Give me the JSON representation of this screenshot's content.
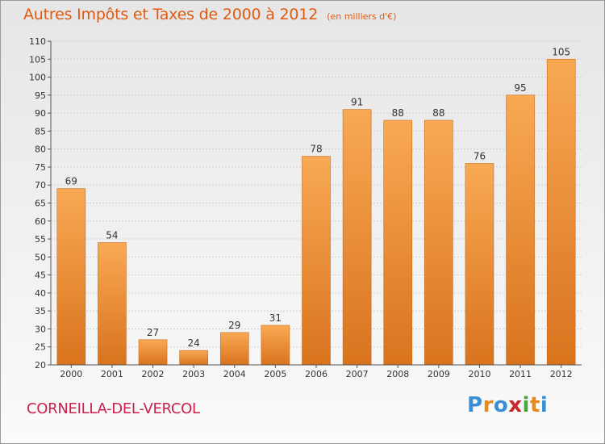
{
  "title": "Autres Impôts et Taxes de 2000 à 2012",
  "subtitle": "(en milliers d'€)",
  "place": "CORNEILLA-DEL-VERCOL",
  "logo": {
    "text": "Proxiti",
    "colors": [
      "#3a8fd6",
      "#e98a1f",
      "#3a8fd6",
      "#c9252c",
      "#4aa83a",
      "#e98a1f",
      "#3a8fd6"
    ]
  },
  "colors": {
    "title": "#e05a12",
    "place": "#cc1f4a",
    "bar_top": "#f9a953",
    "bar_bottom": "#d9731e",
    "bar_stroke": "#c96a1a"
  },
  "chart_data": {
    "type": "bar",
    "categories": [
      "2000",
      "2001",
      "2002",
      "2003",
      "2004",
      "2005",
      "2006",
      "2007",
      "2008",
      "2009",
      "2010",
      "2011",
      "2012"
    ],
    "values": [
      69,
      54,
      27,
      24,
      29,
      31,
      78,
      91,
      88,
      88,
      76,
      95,
      105
    ],
    "ylim": [
      20,
      110
    ],
    "yticks": [
      20,
      25,
      30,
      35,
      40,
      45,
      50,
      55,
      60,
      65,
      70,
      75,
      80,
      85,
      90,
      95,
      100,
      105,
      110
    ],
    "grid": true,
    "data_labels": true
  }
}
